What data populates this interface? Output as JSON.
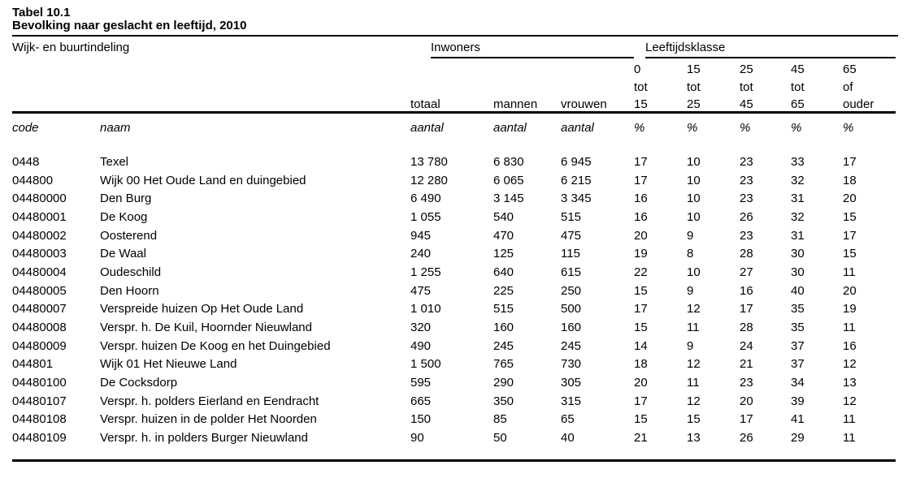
{
  "title": {
    "line1": "Tabel 10.1",
    "line2": "Bevolking naar geslacht en leeftijd, 2010"
  },
  "colors": {
    "text": "#000000",
    "background": "#ffffff",
    "rule": "#000000"
  },
  "table": {
    "header": {
      "area_label": "Wijk- en buurtindeling",
      "group_inwoners": "Inwoners",
      "group_leeftijdsklasse": "Leeftijdsklasse",
      "age_line1": [
        "0",
        "15",
        "25",
        "45",
        "65"
      ],
      "age_line2": [
        "tot",
        "tot",
        "tot",
        "tot",
        "of"
      ],
      "age_line3": [
        "15",
        "25",
        "45",
        "65",
        "ouder"
      ],
      "sub_labels": [
        "totaal",
        "mannen",
        "vrouwen"
      ],
      "field_row": [
        "code",
        "naam",
        "aantal",
        "aantal",
        "aantal",
        "%",
        "%",
        "%",
        "%",
        "%"
      ]
    },
    "rows": [
      {
        "code": "0448",
        "naam": "Texel",
        "totaal": "13 780",
        "mannen": "6 830",
        "vrouwen": "6 945",
        "p0_15": "17",
        "p15_25": "10",
        "p25_45": "23",
        "p45_65": "33",
        "p65": "17"
      },
      {
        "code": "044800",
        "naam": "Wijk 00 Het Oude Land en duingebied",
        "totaal": "12 280",
        "mannen": "6 065",
        "vrouwen": "6 215",
        "p0_15": "17",
        "p15_25": "10",
        "p25_45": "23",
        "p45_65": "32",
        "p65": "18"
      },
      {
        "code": "04480000",
        "naam": "Den Burg",
        "totaal": "6 490",
        "mannen": "3 145",
        "vrouwen": "3 345",
        "p0_15": "16",
        "p15_25": "10",
        "p25_45": "23",
        "p45_65": "31",
        "p65": "20"
      },
      {
        "code": "04480001",
        "naam": "De Koog",
        "totaal": "1 055",
        "mannen": "540",
        "vrouwen": "515",
        "p0_15": "16",
        "p15_25": "10",
        "p25_45": "26",
        "p45_65": "32",
        "p65": "15"
      },
      {
        "code": "04480002",
        "naam": "Oosterend",
        "totaal": "945",
        "mannen": "470",
        "vrouwen": "475",
        "p0_15": "20",
        "p15_25": "9",
        "p25_45": "23",
        "p45_65": "31",
        "p65": "17"
      },
      {
        "code": "04480003",
        "naam": "De Waal",
        "totaal": "240",
        "mannen": "125",
        "vrouwen": "115",
        "p0_15": "19",
        "p15_25": "8",
        "p25_45": "28",
        "p45_65": "30",
        "p65": "15"
      },
      {
        "code": "04480004",
        "naam": "Oudeschild",
        "totaal": "1 255",
        "mannen": "640",
        "vrouwen": "615",
        "p0_15": "22",
        "p15_25": "10",
        "p25_45": "27",
        "p45_65": "30",
        "p65": "11"
      },
      {
        "code": "04480005",
        "naam": "Den Hoorn",
        "totaal": "475",
        "mannen": "225",
        "vrouwen": "250",
        "p0_15": "15",
        "p15_25": "9",
        "p25_45": "16",
        "p45_65": "40",
        "p65": "20"
      },
      {
        "code": "04480007",
        "naam": "Verspreide huizen Op Het Oude Land",
        "totaal": "1 010",
        "mannen": "515",
        "vrouwen": "500",
        "p0_15": "17",
        "p15_25": "12",
        "p25_45": "17",
        "p45_65": "35",
        "p65": "19"
      },
      {
        "code": "04480008",
        "naam": "Verspr. h. De Kuil, Hoornder Nieuwland",
        "totaal": "320",
        "mannen": "160",
        "vrouwen": "160",
        "p0_15": "15",
        "p15_25": "11",
        "p25_45": "28",
        "p45_65": "35",
        "p65": "11"
      },
      {
        "code": "04480009",
        "naam": "Verspr. huizen De Koog en het Duingebied",
        "totaal": "490",
        "mannen": "245",
        "vrouwen": "245",
        "p0_15": "14",
        "p15_25": "9",
        "p25_45": "24",
        "p45_65": "37",
        "p65": "16"
      },
      {
        "code": "044801",
        "naam": "Wijk 01 Het Nieuwe Land",
        "totaal": "1 500",
        "mannen": "765",
        "vrouwen": "730",
        "p0_15": "18",
        "p15_25": "12",
        "p25_45": "21",
        "p45_65": "37",
        "p65": "12"
      },
      {
        "code": "04480100",
        "naam": "De Cocksdorp",
        "totaal": "595",
        "mannen": "290",
        "vrouwen": "305",
        "p0_15": "20",
        "p15_25": "11",
        "p25_45": "23",
        "p45_65": "34",
        "p65": "13"
      },
      {
        "code": "04480107",
        "naam": "Verspr. h. polders Eierland en Eendracht",
        "totaal": "665",
        "mannen": "350",
        "vrouwen": "315",
        "p0_15": "17",
        "p15_25": "12",
        "p25_45": "20",
        "p45_65": "39",
        "p65": "12"
      },
      {
        "code": "04480108",
        "naam": "Verspr. huizen in de polder Het Noorden",
        "totaal": "150",
        "mannen": "85",
        "vrouwen": "65",
        "p0_15": "15",
        "p15_25": "15",
        "p25_45": "17",
        "p45_65": "41",
        "p65": "11"
      },
      {
        "code": "04480109",
        "naam": "Verspr. h. in polders Burger Nieuwland",
        "totaal": "90",
        "mannen": "50",
        "vrouwen": "40",
        "p0_15": "21",
        "p15_25": "13",
        "p25_45": "26",
        "p45_65": "29",
        "p65": "11"
      }
    ]
  }
}
